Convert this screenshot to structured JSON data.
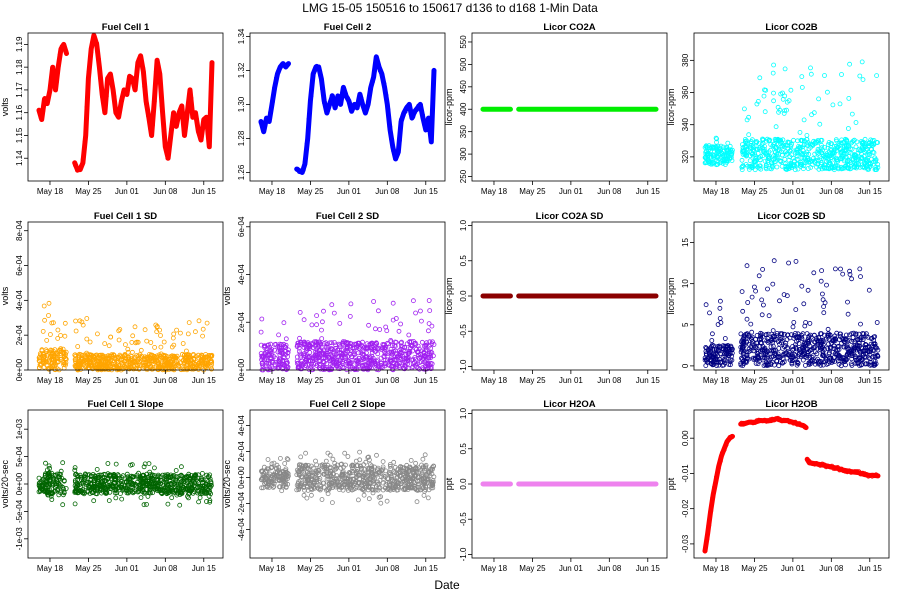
{
  "figure": {
    "title": "LMG   15-05     150516 to 150617     d136 to d168    1-Min Data",
    "xlabel": "Date"
  },
  "x_ticks": [
    "May 18",
    "May 25",
    "Jun 01",
    "Jun 08",
    "Jun 15"
  ],
  "x_tick_days": [
    2,
    9,
    16,
    23,
    30
  ],
  "chart_data": [
    {
      "type": "scatter",
      "title": "Fuel Cell 1",
      "ylabel": "volts",
      "color": "#ff0000",
      "style": "line",
      "ylim": [
        1.13,
        1.195
      ],
      "yticks": [
        1.14,
        1.15,
        1.16,
        1.17,
        1.18,
        1.19
      ],
      "ytick_labels": [
        "1.14",
        "1.15",
        "1.16",
        "1.17",
        "1.18",
        "1.19"
      ],
      "x": [
        0,
        0.5,
        1,
        1.5,
        2,
        2.5,
        3,
        3.5,
        4,
        4.5,
        5,
        null,
        6.5,
        7,
        7.5,
        8,
        8.5,
        9,
        9.5,
        10,
        10.5,
        11,
        11.5,
        12,
        12.5,
        13,
        13.5,
        14,
        14.5,
        15,
        15.5,
        16,
        16.5,
        17,
        17.5,
        18,
        18.5,
        19,
        19.5,
        20,
        20.5,
        21,
        21.5,
        22,
        22.5,
        23,
        23.5,
        24,
        24.5,
        25,
        25.5,
        26,
        26.5,
        27,
        27.5,
        28,
        28.5,
        29,
        29.5,
        30,
        30.5,
        31,
        31.5
      ],
      "y": [
        1.161,
        1.157,
        1.166,
        1.164,
        1.17,
        1.18,
        1.17,
        1.18,
        1.188,
        1.19,
        1.186,
        null,
        1.138,
        1.135,
        1.135,
        1.138,
        1.15,
        1.175,
        1.188,
        1.194,
        1.19,
        1.18,
        1.168,
        1.16,
        1.175,
        1.177,
        1.17,
        1.16,
        1.158,
        1.165,
        1.17,
        1.168,
        1.176,
        1.175,
        1.17,
        1.182,
        1.185,
        1.178,
        1.165,
        1.158,
        1.15,
        1.165,
        1.183,
        1.177,
        1.16,
        1.145,
        1.14,
        1.15,
        1.16,
        1.154,
        1.16,
        1.163,
        1.15,
        1.16,
        1.17,
        1.158,
        1.16,
        1.152,
        1.148,
        1.157,
        1.158,
        1.145,
        1.182
      ]
    },
    {
      "type": "scatter",
      "title": "Fuel Cell 2",
      "ylabel": "",
      "color": "#0000ff",
      "style": "line",
      "ylim": [
        1.255,
        1.342
      ],
      "yticks": [
        1.26,
        1.28,
        1.3,
        1.32,
        1.34
      ],
      "ytick_labels": [
        "1.26",
        "1.28",
        "1.30",
        "1.32",
        "1.34"
      ],
      "x": [
        0,
        0.5,
        1,
        1.5,
        2,
        2.5,
        3,
        3.5,
        4,
        4.5,
        5,
        null,
        6.5,
        7,
        7.5,
        8,
        8.5,
        9,
        9.5,
        10,
        10.5,
        11,
        11.5,
        12,
        12.5,
        13,
        13.5,
        14,
        14.5,
        15,
        15.5,
        16,
        16.5,
        17,
        17.5,
        18,
        18.5,
        19,
        19.5,
        20,
        20.5,
        21,
        21.5,
        22,
        22.5,
        23,
        23.5,
        24,
        24.5,
        25,
        25.5,
        26,
        26.5,
        27,
        27.5,
        28,
        28.5,
        29,
        29.5,
        30,
        30.5,
        31,
        31.5
      ],
      "y": [
        1.29,
        1.284,
        1.292,
        1.29,
        1.3,
        1.31,
        1.318,
        1.322,
        1.324,
        1.322,
        1.324,
        null,
        1.262,
        1.261,
        1.26,
        1.265,
        1.28,
        1.302,
        1.318,
        1.322,
        1.322,
        1.315,
        1.302,
        1.295,
        1.3,
        1.305,
        1.298,
        1.305,
        1.3,
        1.31,
        1.305,
        1.302,
        1.296,
        1.3,
        1.298,
        1.306,
        1.3,
        1.295,
        1.3,
        1.31,
        1.316,
        1.328,
        1.322,
        1.318,
        1.31,
        1.3,
        1.285,
        1.275,
        1.268,
        1.272,
        1.29,
        1.295,
        1.298,
        1.3,
        1.292,
        1.296,
        1.298,
        1.3,
        1.292,
        1.285,
        1.292,
        1.278,
        1.32
      ]
    },
    {
      "type": "scatter",
      "title": "Licor CO2A",
      "ylabel": "licor-ppm",
      "color": "#00ee00",
      "style": "flat",
      "ylim": [
        240,
        570
      ],
      "yticks": [
        250,
        300,
        350,
        400,
        450,
        500,
        550
      ],
      "ytick_labels": [
        "250",
        "300",
        "350",
        "400",
        "450",
        "500",
        "550"
      ],
      "segments": [
        [
          0,
          5
        ],
        [
          6.5,
          31.5
        ]
      ],
      "y": 400
    },
    {
      "type": "scatter",
      "title": "Licor CO2B",
      "ylabel": "licor-ppm",
      "color": "#00ffff",
      "style": "noisy",
      "ylim": [
        305,
        397
      ],
      "yticks": [
        320,
        340,
        360,
        380
      ],
      "ytick_labels": [
        "320",
        "340",
        "360",
        "380"
      ],
      "bands": [
        {
          "from": 0,
          "to": 5,
          "base": [
            315,
            327
          ],
          "spike": 333
        },
        {
          "from": 6.5,
          "to": 31.5,
          "base": [
            312,
            331
          ],
          "spike": 380
        }
      ]
    },
    {
      "type": "scatter",
      "title": "Fuel Cell 1 SD",
      "ylabel": "volts",
      "color": "#ffa500",
      "style": "noisy",
      "ylim": [
        0,
        0.00085
      ],
      "yticks": [
        0,
        0.0002,
        0.0004,
        0.0006,
        0.0008
      ],
      "ytick_labels": [
        "0e+00",
        "2e-04",
        "4e-04",
        "6e-04",
        "8e-04"
      ],
      "bands": [
        {
          "from": 0,
          "to": 5,
          "base": [
            0,
            0.00012
          ],
          "spike": 0.0004
        },
        {
          "from": 6.5,
          "to": 31.5,
          "base": [
            0,
            9e-05
          ],
          "spike": 0.0003
        }
      ]
    },
    {
      "type": "scatter",
      "title": "Fuel Cell 2 SD",
      "ylabel": "volts",
      "color": "#a020f0",
      "style": "noisy",
      "ylim": [
        0,
        0.00062
      ],
      "yticks": [
        0,
        0.0002,
        0.0004,
        0.0006
      ],
      "ytick_labels": [
        "0e+00",
        "2e-04",
        "4e-04",
        "6e-04"
      ],
      "bands": [
        {
          "from": 0,
          "to": 5,
          "base": [
            0,
            0.00011
          ],
          "spike": 0.00022
        },
        {
          "from": 6.5,
          "to": 31.5,
          "base": [
            0,
            0.00012
          ],
          "spike": 0.0003
        }
      ]
    },
    {
      "type": "scatter",
      "title": "Licor CO2A SD",
      "ylabel": "licor-ppm",
      "color": "#8b0000",
      "style": "flat",
      "ylim": [
        -1.05,
        1.05
      ],
      "yticks": [
        -1,
        -0.5,
        0,
        0.5,
        1
      ],
      "ytick_labels": [
        "-1.0",
        "-0.5",
        "0.0",
        "0.5",
        "1.0"
      ],
      "segments": [
        [
          0,
          5
        ],
        [
          6.5,
          31.5
        ]
      ],
      "y": 0
    },
    {
      "type": "scatter",
      "title": "Licor CO2B SD",
      "ylabel": "licor-ppm",
      "color": "#000080",
      "style": "noisy",
      "ylim": [
        -0.5,
        17.5
      ],
      "yticks": [
        0,
        5,
        10,
        15
      ],
      "ytick_labels": [
        "0",
        "5",
        "10",
        "15"
      ],
      "bands": [
        {
          "from": 0,
          "to": 5,
          "base": [
            0,
            2.5
          ],
          "spike": 8.5
        },
        {
          "from": 6.5,
          "to": 31.5,
          "base": [
            0,
            4
          ],
          "spike": 13
        }
      ]
    },
    {
      "type": "scatter",
      "title": "Fuel Cell 1 Slope",
      "ylabel": "volts/20-sec",
      "color": "#006400",
      "style": "noisy",
      "ylim": [
        -0.00135,
        0.00135
      ],
      "yticks": [
        -0.001,
        -0.0005,
        0,
        0.0005,
        0.001
      ],
      "ytick_labels": [
        "-1e-03",
        "-5e-04",
        "0e+00",
        "5e-04",
        "1e-03"
      ],
      "bands": [
        {
          "from": 0,
          "to": 5,
          "base": [
            -0.0002,
            0.0002
          ],
          "spike": 0.0004
        },
        {
          "from": 6.5,
          "to": 31.5,
          "base": [
            -0.00018,
            0.00018
          ],
          "spike": 0.0004
        }
      ]
    },
    {
      "type": "scatter",
      "title": "Fuel Cell 2 Slope",
      "ylabel": "volts/20-sec",
      "color": "#888888",
      "style": "noisy",
      "ylim": [
        -0.00062,
        0.00052
      ],
      "yticks": [
        -0.0004,
        -0.0002,
        0,
        0.0002,
        0.0004
      ],
      "ytick_labels": [
        "-4e-04",
        "-2e-04",
        "0e+00",
        "2e-04",
        "4e-04"
      ],
      "bands": [
        {
          "from": 0,
          "to": 5,
          "base": [
            -8e-05,
            8e-05
          ],
          "spike": 0.00015
        },
        {
          "from": 6.5,
          "to": 31.5,
          "base": [
            -0.0001,
            0.0001
          ],
          "spike": 0.0002
        }
      ]
    },
    {
      "type": "scatter",
      "title": "Licor H2OA",
      "ylabel": "ppt",
      "color": "#ee82ee",
      "style": "flat",
      "ylim": [
        -1.05,
        1.05
      ],
      "yticks": [
        -1,
        -0.5,
        0,
        0.5,
        1
      ],
      "ytick_labels": [
        "-1.0",
        "-0.5",
        "0.0",
        "0.5",
        "1.0"
      ],
      "segments": [
        [
          0,
          5
        ],
        [
          6.5,
          31.5
        ]
      ],
      "y": 0
    },
    {
      "type": "scatter",
      "title": "Licor H2OB",
      "ylabel": "ppt",
      "color": "#ff0000",
      "style": "line",
      "ylim": [
        -0.034,
        0.008
      ],
      "yticks": [
        -0.03,
        -0.02,
        -0.01,
        0
      ],
      "ytick_labels": [
        "-0.03",
        "-0.02",
        "-0.01",
        "0.00"
      ],
      "x": [
        0,
        0.5,
        1,
        1.5,
        2,
        2.5,
        3,
        3.5,
        4,
        4.5,
        5,
        null,
        6.5,
        7,
        8,
        9,
        10,
        11,
        12,
        13,
        14,
        15,
        16,
        17,
        18,
        18.4,
        null,
        18.6,
        19,
        20,
        21,
        22,
        23,
        24,
        25,
        26,
        27,
        28,
        29,
        30,
        30.5,
        31,
        31.5
      ],
      "y": [
        -0.032,
        -0.027,
        -0.021,
        -0.016,
        -0.012,
        -0.008,
        -0.005,
        -0.003,
        -0.001,
        0.0,
        0.0005,
        null,
        0.004,
        0.004,
        0.0045,
        0.0045,
        0.005,
        0.005,
        0.005,
        0.0055,
        0.005,
        0.005,
        0.0045,
        0.004,
        0.0035,
        0.003,
        null,
        -0.006,
        -0.007,
        -0.0072,
        -0.0075,
        -0.0078,
        -0.0082,
        -0.0085,
        -0.009,
        -0.0093,
        -0.0096,
        -0.0098,
        -0.0103,
        -0.0106,
        -0.0105,
        -0.0106,
        -0.0107
      ]
    }
  ]
}
